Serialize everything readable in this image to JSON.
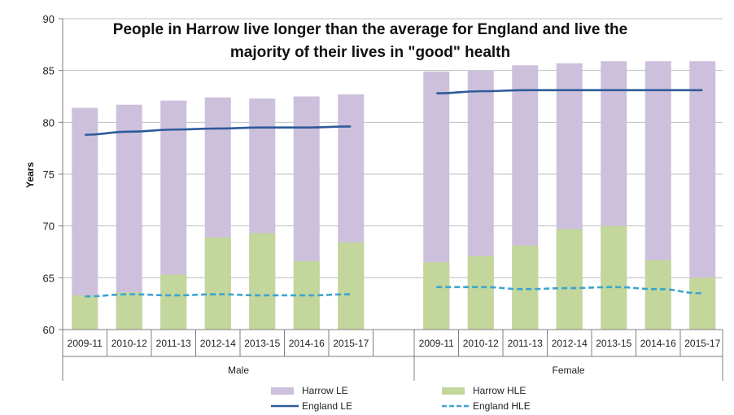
{
  "chart_data": {
    "type": "bar",
    "title_lines": [
      "People in Harrow live longer than the average for England and live the",
      "majority of their lives in \"good\" health"
    ],
    "ylabel": "Years",
    "ylim": [
      60,
      90
    ],
    "yticks": [
      60,
      65,
      70,
      75,
      80,
      85,
      90
    ],
    "grid": true,
    "legend_position": "bottom",
    "groups": [
      {
        "name": "Male",
        "categories": [
          "2009-11",
          "2010-12",
          "2011-13",
          "2012-14",
          "2013-15",
          "2014-16",
          "2015-17"
        ],
        "series": [
          {
            "name": "Harrow LE",
            "type": "bar",
            "color": "#cdc0dc",
            "values": [
              81.4,
              81.7,
              82.1,
              82.4,
              82.3,
              82.5,
              82.7
            ]
          },
          {
            "name": "Harrow HLE",
            "type": "bar",
            "color": "#c3d69b",
            "values": [
              63.3,
              63.6,
              65.3,
              68.9,
              69.3,
              66.6,
              68.4
            ]
          },
          {
            "name": "England LE",
            "type": "line",
            "color": "#2e5b9a",
            "values": [
              78.8,
              79.1,
              79.3,
              79.4,
              79.5,
              79.5,
              79.6
            ]
          },
          {
            "name": "England HLE",
            "type": "line-dashed",
            "color": "#3da4cf",
            "values": [
              63.2,
              63.4,
              63.3,
              63.4,
              63.3,
              63.3,
              63.4
            ]
          }
        ]
      },
      {
        "name": "Female",
        "categories": [
          "2009-11",
          "2010-12",
          "2011-13",
          "2012-14",
          "2013-15",
          "2014-16",
          "2015-17"
        ],
        "series": [
          {
            "name": "Harrow LE",
            "type": "bar",
            "color": "#cdc0dc",
            "values": [
              84.9,
              85.0,
              85.5,
              85.7,
              85.9,
              85.9,
              85.9
            ]
          },
          {
            "name": "Harrow HLE",
            "type": "bar",
            "color": "#c3d69b",
            "values": [
              66.5,
              67.1,
              68.1,
              69.7,
              70.0,
              66.7,
              65.0
            ]
          },
          {
            "name": "England LE",
            "type": "line",
            "color": "#2e5b9a",
            "values": [
              82.8,
              83.0,
              83.1,
              83.1,
              83.1,
              83.1,
              83.1
            ]
          },
          {
            "name": "England HLE",
            "type": "line-dashed",
            "color": "#3da4cf",
            "values": [
              64.1,
              64.1,
              63.9,
              64.0,
              64.1,
              63.9,
              63.5
            ]
          }
        ]
      }
    ],
    "legend": [
      {
        "name": "Harrow LE",
        "kind": "box",
        "color": "#cdc0dc"
      },
      {
        "name": "Harrow HLE",
        "kind": "box",
        "color": "#c3d69b"
      },
      {
        "name": "England LE",
        "kind": "line",
        "color": "#2e5b9a"
      },
      {
        "name": "England HLE",
        "kind": "dashed",
        "color": "#3da4cf"
      }
    ]
  }
}
